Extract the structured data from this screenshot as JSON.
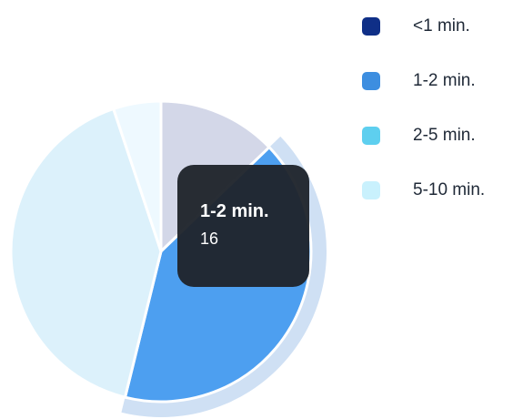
{
  "chart_data": {
    "type": "pie",
    "title": "",
    "series": [
      {
        "categories": [
          "<1 min.",
          "1-2 min.",
          "2-5 min.",
          "5-10 min."
        ],
        "values": [
          5,
          16,
          16,
          2
        ],
        "colors": [
          "#d3d7e8",
          "#4d9ff0",
          "#dcf1fb",
          "#eef9ff"
        ]
      }
    ],
    "legend": {
      "placement": "right",
      "items": [
        {
          "label": "<1 min.",
          "color": "#0f2f87"
        },
        {
          "label": "1-2 min.",
          "color": "#3d8ee0"
        },
        {
          "label": "2-5 min.",
          "color": "#5ecfef"
        },
        {
          "label": "5-10 min.",
          "color": "#c9f1fd"
        }
      ]
    },
    "highlight": {
      "category": "1-2 min.",
      "color": "#cfe0f4"
    },
    "tooltip": {
      "title": "1-2 min.",
      "value": "16"
    }
  }
}
